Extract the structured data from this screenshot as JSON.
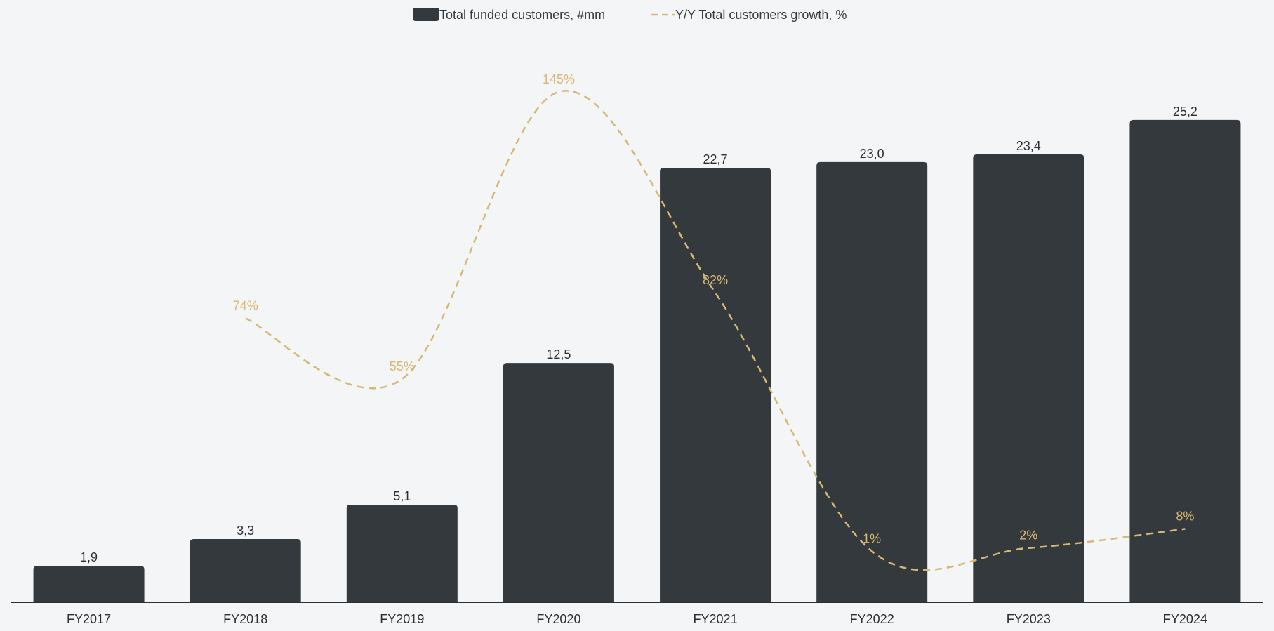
{
  "chart_data": {
    "type": "bar",
    "categories": [
      "FY2017",
      "FY2018",
      "FY2019",
      "FY2020",
      "FY2021",
      "FY2022",
      "FY2023",
      "FY2024"
    ],
    "series": [
      {
        "name": "Total funded customers, #mm",
        "type": "bar",
        "axis": "left",
        "values": [
          1.9,
          3.3,
          5.1,
          12.5,
          22.7,
          23.0,
          23.4,
          25.2
        ],
        "labels": [
          "1,9",
          "3,3",
          "5,1",
          "12,5",
          "22,7",
          "23,0",
          "23,4",
          "25,2"
        ],
        "color": "#33393d"
      },
      {
        "name": "Y/Y Total customers growth, %",
        "type": "line",
        "style": "dashed",
        "axis": "right",
        "values": [
          null,
          74,
          55,
          145,
          82,
          1,
          2,
          8
        ],
        "labels": [
          "",
          "74%",
          "55%",
          "145%",
          "82%",
          "1%",
          "2%",
          "8%"
        ],
        "color": "#d9b772"
      }
    ],
    "title": "",
    "xlabel": "",
    "ylabel": "",
    "ylim": [
      0,
      30
    ],
    "y2lim": [
      -15,
      165
    ],
    "grid": false,
    "legend": "top-center"
  }
}
